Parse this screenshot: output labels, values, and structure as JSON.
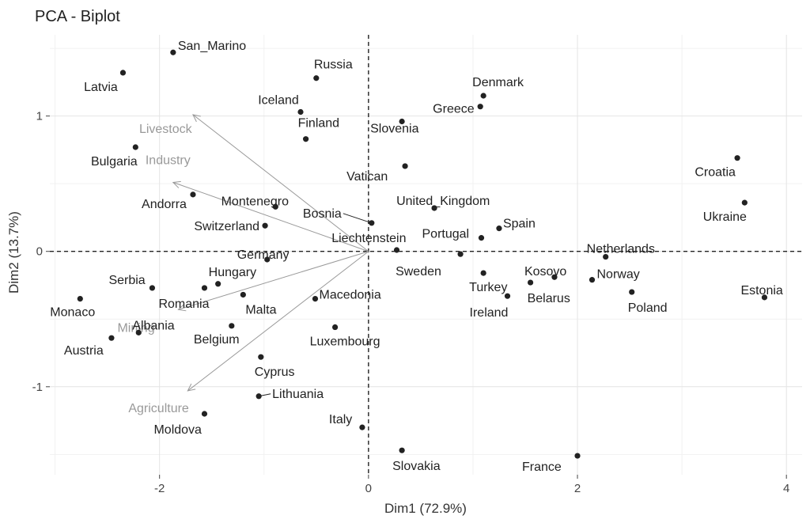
{
  "chart_data": {
    "type": "scatter",
    "title": "PCA - Biplot",
    "xlabel": "Dim1 (72.9%)",
    "ylabel": "Dim2 (13.7%)",
    "xlim": [
      -3.05,
      4.15
    ],
    "ylim": [
      -1.65,
      1.6
    ],
    "xticks": [
      -2,
      0,
      2,
      4
    ],
    "yticks": [
      -1,
      0,
      1
    ],
    "xtick_labels": [
      "-2",
      "0",
      "2",
      "4"
    ],
    "ytick_labels": [
      "-1",
      "0",
      "1"
    ],
    "grid": true,
    "reference_lines": {
      "x": 0,
      "y": 0,
      "style": "dashed"
    },
    "points": [
      {
        "label": "San_Marino",
        "x": -1.87,
        "y": 1.47
      },
      {
        "label": "Latvia",
        "x": -2.35,
        "y": 1.32
      },
      {
        "label": "Russia",
        "x": -0.5,
        "y": 1.28
      },
      {
        "label": "Iceland",
        "x": -0.65,
        "y": 1.03
      },
      {
        "label": "Finland",
        "x": -0.6,
        "y": 0.83
      },
      {
        "label": "Slovenia",
        "x": 0.32,
        "y": 0.96
      },
      {
        "label": "Denmark",
        "x": 1.1,
        "y": 1.15
      },
      {
        "label": "Greece",
        "x": 1.07,
        "y": 1.07
      },
      {
        "label": "Bulgaria",
        "x": -2.23,
        "y": 0.77
      },
      {
        "label": "Vatican",
        "x": 0.35,
        "y": 0.63
      },
      {
        "label": "Croatia",
        "x": 3.53,
        "y": 0.69
      },
      {
        "label": "Ukraine",
        "x": 3.6,
        "y": 0.36
      },
      {
        "label": "Andorra",
        "x": -1.68,
        "y": 0.42
      },
      {
        "label": "Montenegro",
        "x": -0.89,
        "y": 0.33
      },
      {
        "label": "United_Kingdom",
        "x": 0.63,
        "y": 0.32
      },
      {
        "label": "Bosnia",
        "x": 0.03,
        "y": 0.21
      },
      {
        "label": "Switzerland",
        "x": -0.99,
        "y": 0.19
      },
      {
        "label": "Spain",
        "x": 1.25,
        "y": 0.17
      },
      {
        "label": "Liechtenstein",
        "x": 0.27,
        "y": 0.01
      },
      {
        "label": "Portugal",
        "x": 1.08,
        "y": 0.1
      },
      {
        "label": "Germany",
        "x": -0.97,
        "y": -0.06
      },
      {
        "label": "Sweden",
        "x": 0.88,
        "y": -0.02
      },
      {
        "label": "Netherlands",
        "x": 2.27,
        "y": -0.04
      },
      {
        "label": "Kosovo",
        "x": 1.78,
        "y": -0.19
      },
      {
        "label": "Norway",
        "x": 2.14,
        "y": -0.21
      },
      {
        "label": "Turkey",
        "x": 1.1,
        "y": -0.16
      },
      {
        "label": "Belarus",
        "x": 1.55,
        "y": -0.23
      },
      {
        "label": "Ireland",
        "x": 1.33,
        "y": -0.33
      },
      {
        "label": "Poland",
        "x": 2.52,
        "y": -0.3
      },
      {
        "label": "Estonia",
        "x": 3.79,
        "y": -0.34
      },
      {
        "label": "Serbia",
        "x": -2.07,
        "y": -0.27
      },
      {
        "label": "Hungary",
        "x": -1.44,
        "y": -0.24
      },
      {
        "label": "Romania",
        "x": -1.57,
        "y": -0.27
      },
      {
        "label": "Malta",
        "x": -1.2,
        "y": -0.32
      },
      {
        "label": "Macedonia",
        "x": -0.51,
        "y": -0.35
      },
      {
        "label": "Monaco",
        "x": -2.76,
        "y": -0.35
      },
      {
        "label": "Albania",
        "x": -2.2,
        "y": -0.6
      },
      {
        "label": "Austria",
        "x": -2.46,
        "y": -0.64
      },
      {
        "label": "Belgium",
        "x": -1.31,
        "y": -0.55
      },
      {
        "label": "Luxembourg",
        "x": -0.32,
        "y": -0.56
      },
      {
        "label": "Cyprus",
        "x": -1.03,
        "y": -0.78
      },
      {
        "label": "Lithuania",
        "x": -1.05,
        "y": -1.07
      },
      {
        "label": "Moldova",
        "x": -1.57,
        "y": -1.2
      },
      {
        "label": "Italy",
        "x": -0.06,
        "y": -1.3
      },
      {
        "label": "Slovakia",
        "x": 0.32,
        "y": -1.47
      },
      {
        "label": "France",
        "x": 2.0,
        "y": -1.51
      }
    ],
    "variables": [
      {
        "label": "Livestock",
        "x": -1.68,
        "y": 1.01
      },
      {
        "label": "Industry",
        "x": -1.87,
        "y": 0.51
      },
      {
        "label": "Mining",
        "x": -1.82,
        "y": -0.43
      },
      {
        "label": "Agriculture",
        "x": -1.73,
        "y": -1.03
      }
    ]
  }
}
